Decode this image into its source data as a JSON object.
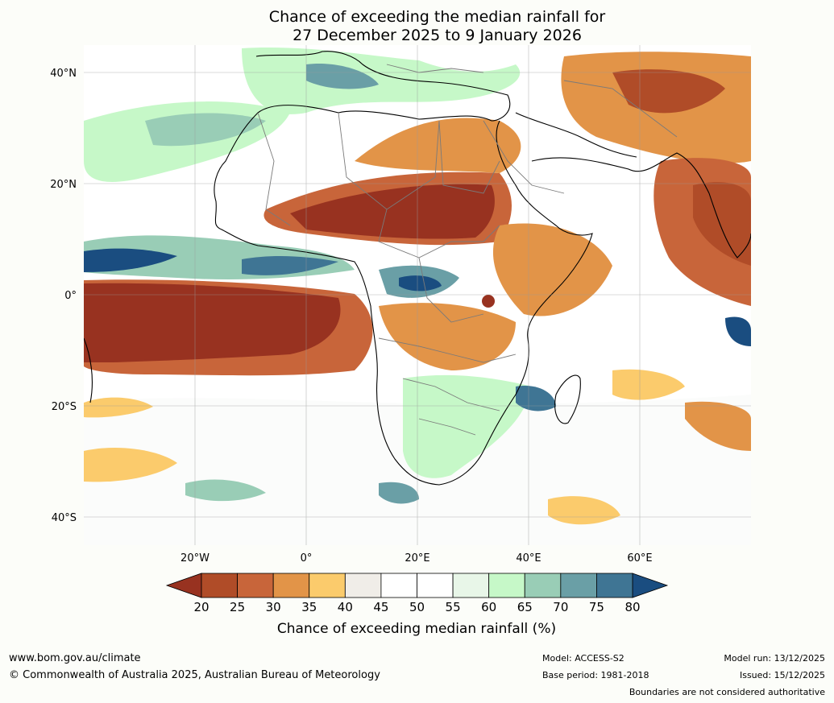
{
  "title": {
    "line1": "Chance of exceeding the median rainfall for",
    "line2": "27 December 2025 to 9 January 2026"
  },
  "axes": {
    "lat_labels": [
      "40°N",
      "20°N",
      "0°",
      "20°S",
      "40°S"
    ],
    "lon_labels": [
      "20°W",
      "0°",
      "20°E",
      "40°E",
      "60°E"
    ]
  },
  "colorbar": {
    "ticks": [
      "20",
      "25",
      "30",
      "35",
      "40",
      "45",
      "50",
      "55",
      "60",
      "65",
      "70",
      "75",
      "80"
    ],
    "colors": [
      "#983220",
      "#b04c28",
      "#c8653a",
      "#e29448",
      "#fbcb6c",
      "#f0ede8",
      "#ffffff",
      "#ffffff",
      "#e8f6e8",
      "#c6f8c8",
      "#99cdb6",
      "#6a9fa6",
      "#3f7594"
    ],
    "low_extend_color": "#983220",
    "high_extend_color": "#1a4d80",
    "label": "Chance of exceeding median rainfall (%)"
  },
  "footer": {
    "website": "www.bom.gov.au/climate",
    "copyright": "© Commonwealth of Australia 2025, Australian Bureau of Meteorology",
    "model": "Model: ACCESS-S2",
    "base_period": "Base period: 1981-2018",
    "model_run": "Model run: 13/12/2025",
    "issued": "Issued: 15/12/2025",
    "disclaimer": "Boundaries are not considered authoritative"
  },
  "colors": {
    "dry_strong": "#983220",
    "dry": "#c8653a",
    "dry_light": "#fbcb6c",
    "neutral": "#f0ede8",
    "wet_light": "#c6f8c8",
    "wet": "#99cdb6",
    "wet_strong": "#1a4d80"
  }
}
